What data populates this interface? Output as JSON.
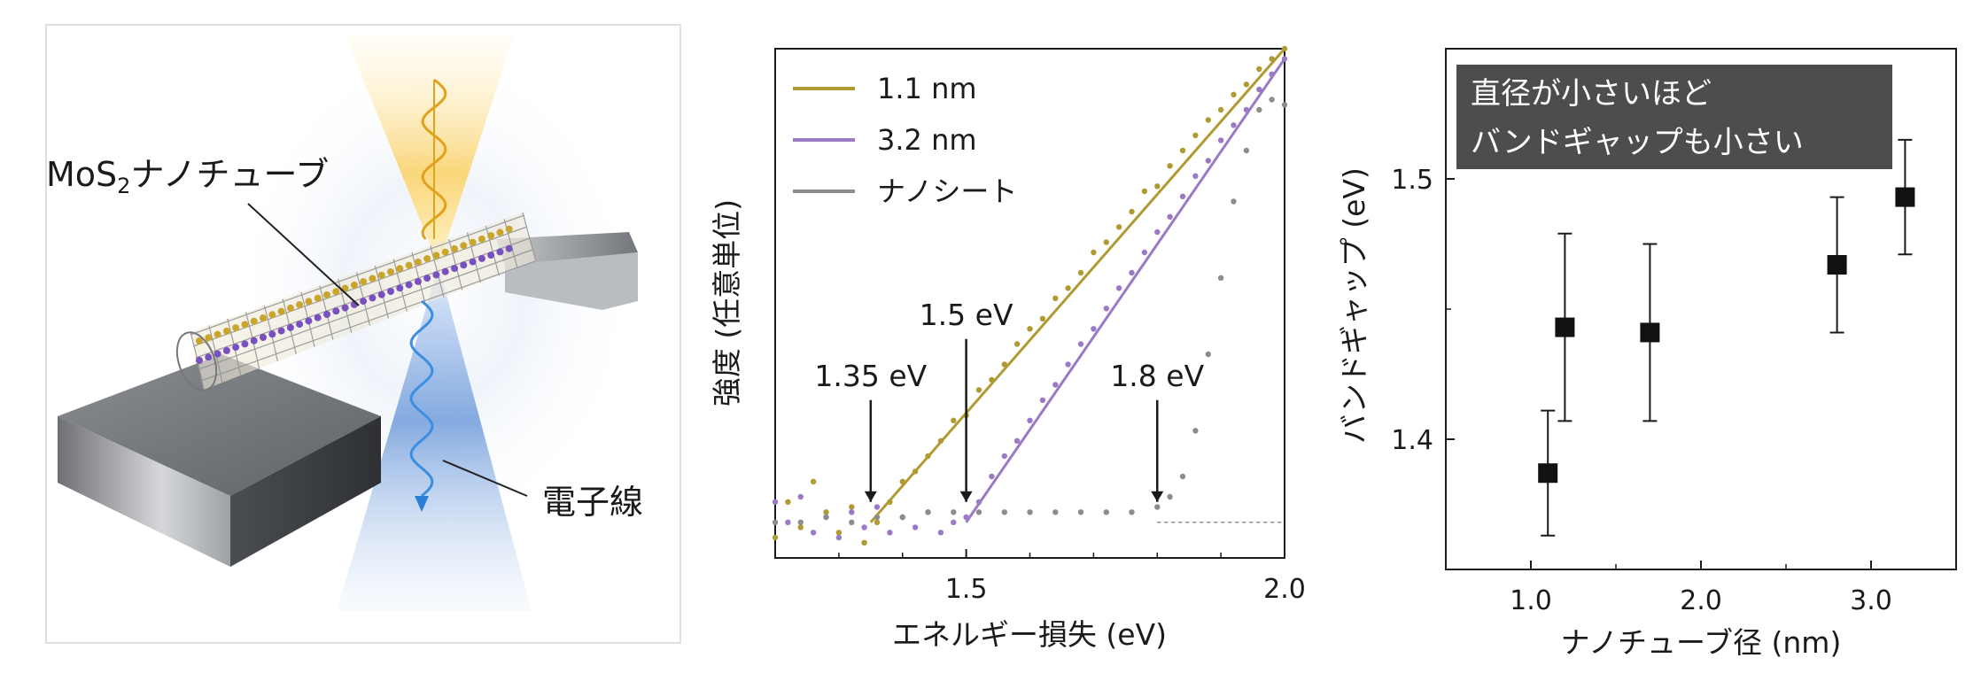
{
  "panel_a": {
    "label_nanotube_base": "MoS",
    "label_nanotube_sub": "2",
    "label_nanotube_rest": "ナノチューブ",
    "label_beam": "電子線"
  },
  "chart_data": [
    {
      "type": "line",
      "xlabel": "エネルギー損失 (eV)",
      "ylabel": "強度 (任意単位)",
      "xlim": [
        1.2,
        2.0
      ],
      "ylim": [
        0,
        1
      ],
      "xticks": [
        1.5,
        2.0
      ],
      "xtick_labels": [
        "1.5",
        "2.0"
      ],
      "yticks_shown": false,
      "legend_position": "top-left",
      "series": [
        {
          "name": "1.1 nm",
          "color": "#b09a32",
          "marker": "dots-with-fit",
          "onset": 1.35,
          "fit": [
            [
              1.35,
              0.07
            ],
            [
              2.0,
              1.0
            ]
          ],
          "points": [
            [
              1.2,
              0.04
            ],
            [
              1.22,
              0.11
            ],
            [
              1.24,
              0.06
            ],
            [
              1.26,
              0.15
            ],
            [
              1.28,
              0.09
            ],
            [
              1.3,
              0.05
            ],
            [
              1.32,
              0.1
            ],
            [
              1.34,
              0.03
            ],
            [
              1.36,
              0.07
            ],
            [
              1.38,
              0.11
            ],
            [
              1.4,
              0.15
            ],
            [
              1.42,
              0.17
            ],
            [
              1.44,
              0.2
            ],
            [
              1.46,
              0.23
            ],
            [
              1.48,
              0.27
            ],
            [
              1.5,
              0.28
            ],
            [
              1.52,
              0.33
            ],
            [
              1.54,
              0.35
            ],
            [
              1.56,
              0.38
            ],
            [
              1.58,
              0.42
            ],
            [
              1.6,
              0.45
            ],
            [
              1.62,
              0.47
            ],
            [
              1.64,
              0.51
            ],
            [
              1.66,
              0.53
            ],
            [
              1.68,
              0.56
            ],
            [
              1.7,
              0.6
            ],
            [
              1.72,
              0.62
            ],
            [
              1.74,
              0.65
            ],
            [
              1.76,
              0.68
            ],
            [
              1.78,
              0.72
            ],
            [
              1.8,
              0.73
            ],
            [
              1.82,
              0.77
            ],
            [
              1.84,
              0.8
            ],
            [
              1.86,
              0.83
            ],
            [
              1.88,
              0.86
            ],
            [
              1.9,
              0.88
            ],
            [
              1.92,
              0.91
            ],
            [
              1.94,
              0.93
            ],
            [
              1.96,
              0.96
            ],
            [
              1.98,
              0.98
            ],
            [
              2.0,
              1.0
            ]
          ]
        },
        {
          "name": "3.2 nm",
          "color": "#9b79c4",
          "marker": "dots-with-fit",
          "onset": 1.5,
          "fit": [
            [
              1.5,
              0.07
            ],
            [
              2.0,
              0.98
            ]
          ],
          "points": [
            [
              1.2,
              0.11
            ],
            [
              1.22,
              0.07
            ],
            [
              1.24,
              0.12
            ],
            [
              1.26,
              0.05
            ],
            [
              1.28,
              0.08
            ],
            [
              1.3,
              0.04
            ],
            [
              1.32,
              0.09
            ],
            [
              1.34,
              0.06
            ],
            [
              1.36,
              0.1
            ],
            [
              1.38,
              0.05
            ],
            [
              1.4,
              0.08
            ],
            [
              1.42,
              0.06
            ],
            [
              1.44,
              0.09
            ],
            [
              1.46,
              0.05
            ],
            [
              1.48,
              0.07
            ],
            [
              1.5,
              0.08
            ],
            [
              1.52,
              0.11
            ],
            [
              1.54,
              0.16
            ],
            [
              1.56,
              0.2
            ],
            [
              1.58,
              0.23
            ],
            [
              1.6,
              0.27
            ],
            [
              1.62,
              0.31
            ],
            [
              1.64,
              0.34
            ],
            [
              1.66,
              0.38
            ],
            [
              1.68,
              0.42
            ],
            [
              1.7,
              0.45
            ],
            [
              1.72,
              0.49
            ],
            [
              1.74,
              0.53
            ],
            [
              1.76,
              0.56
            ],
            [
              1.78,
              0.6
            ],
            [
              1.8,
              0.64
            ],
            [
              1.82,
              0.67
            ],
            [
              1.84,
              0.71
            ],
            [
              1.86,
              0.75
            ],
            [
              1.88,
              0.78
            ],
            [
              1.9,
              0.82
            ],
            [
              1.92,
              0.85
            ],
            [
              1.94,
              0.88
            ],
            [
              1.96,
              0.92
            ],
            [
              1.98,
              0.95
            ],
            [
              2.0,
              0.98
            ]
          ]
        },
        {
          "name": "ナノシート",
          "color": "#8c8c8c",
          "marker": "dots",
          "onset": 1.8,
          "points": [
            [
              1.2,
              0.07
            ],
            [
              1.24,
              0.07
            ],
            [
              1.28,
              0.08
            ],
            [
              1.32,
              0.07
            ],
            [
              1.36,
              0.08
            ],
            [
              1.4,
              0.08
            ],
            [
              1.44,
              0.09
            ],
            [
              1.48,
              0.09
            ],
            [
              1.52,
              0.09
            ],
            [
              1.56,
              0.09
            ],
            [
              1.6,
              0.09
            ],
            [
              1.64,
              0.09
            ],
            [
              1.68,
              0.09
            ],
            [
              1.72,
              0.09
            ],
            [
              1.76,
              0.09
            ],
            [
              1.8,
              0.1
            ],
            [
              1.82,
              0.12
            ],
            [
              1.84,
              0.16
            ],
            [
              1.86,
              0.25
            ],
            [
              1.88,
              0.4
            ],
            [
              1.9,
              0.55
            ],
            [
              1.92,
              0.7
            ],
            [
              1.94,
              0.8
            ],
            [
              1.96,
              0.88
            ],
            [
              1.98,
              0.9
            ],
            [
              2.0,
              0.89
            ]
          ]
        }
      ],
      "baseline": 0.07,
      "annotations": [
        {
          "text": "1.35 eV",
          "x": 1.35
        },
        {
          "text": "1.5 eV",
          "x": 1.5
        },
        {
          "text": "1.8 eV",
          "x": 1.8
        }
      ]
    },
    {
      "type": "scatter",
      "xlabel": "ナノチューブ径 (nm)",
      "ylabel": "バンドギャップ (eV)",
      "xlim": [
        0.5,
        3.5
      ],
      "ylim": [
        1.35,
        1.55
      ],
      "xticks": [
        1.0,
        2.0,
        3.0
      ],
      "xtick_labels": [
        "1.0",
        "2.0",
        "3.0"
      ],
      "yticks": [
        1.4,
        1.5
      ],
      "ytick_labels": [
        "1.4",
        "1.5"
      ],
      "annotation_lines": [
        "直径が小さいほど",
        "バンドギャップも小さい"
      ],
      "annotation_bg": "#4d4d4d",
      "points": [
        {
          "x": 1.1,
          "y": 1.387,
          "err": 0.024
        },
        {
          "x": 1.2,
          "y": 1.443,
          "err": 0.036
        },
        {
          "x": 1.7,
          "y": 1.441,
          "err": 0.034
        },
        {
          "x": 2.8,
          "y": 1.467,
          "err": 0.026
        },
        {
          "x": 3.2,
          "y": 1.493,
          "err": 0.022
        }
      ]
    }
  ]
}
